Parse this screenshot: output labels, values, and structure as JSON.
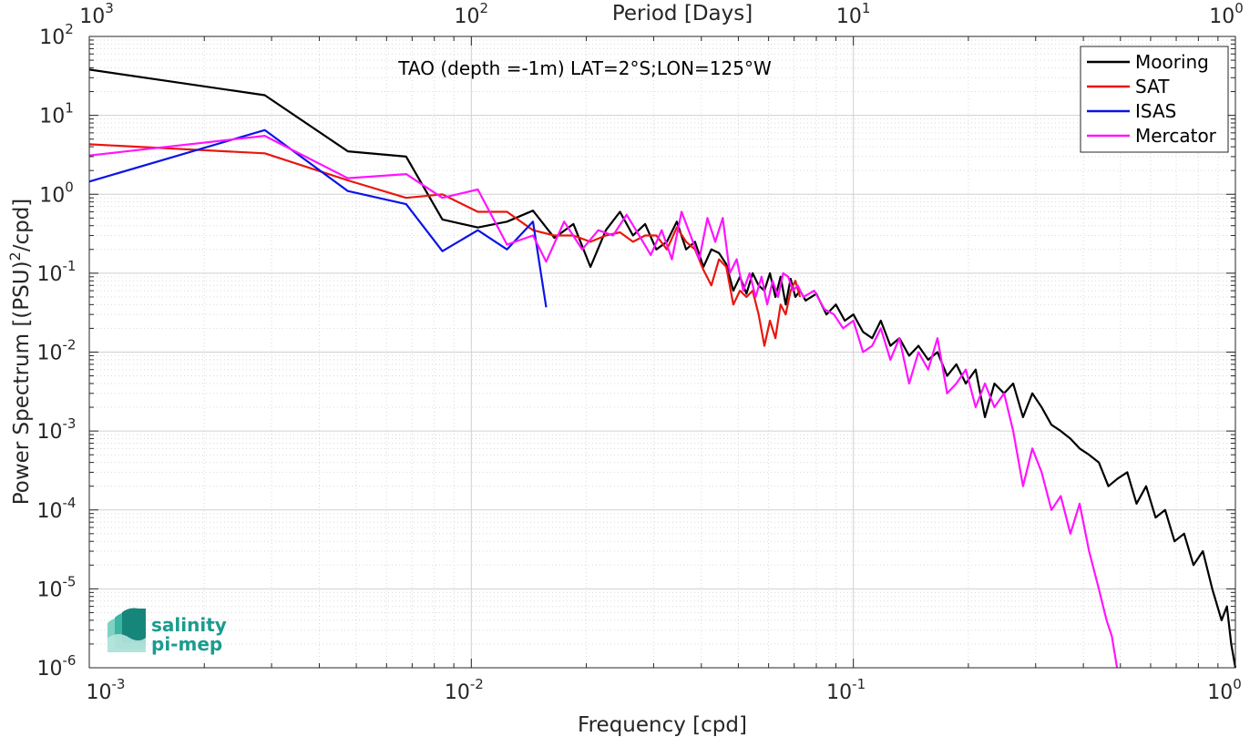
{
  "chart_data": {
    "type": "line",
    "title": "TAO (depth =-1m) LAT=2°S;LON=125°W",
    "xlabel": "Frequency [cpd]",
    "ylabel": "Power Spectrum [(PSU)²/cpd]",
    "ylabel_parts": {
      "before": "Power Spectrum [(PSU)",
      "sup": "2",
      "after": "/cpd]"
    },
    "top_xlabel": "Period [Days]",
    "x_scale": "log",
    "y_scale": "log",
    "xlim": [
      0.001,
      1
    ],
    "ylim": [
      1e-06,
      100
    ],
    "grid": true,
    "legend_position": "top-right",
    "x_ticks": [
      {
        "value": 0.001,
        "base": "10",
        "exp": "-3"
      },
      {
        "value": 0.01,
        "base": "10",
        "exp": "-2"
      },
      {
        "value": 0.1,
        "base": "10",
        "exp": "-1"
      },
      {
        "value": 1,
        "base": "10",
        "exp": "0"
      }
    ],
    "y_ticks": [
      {
        "value": 1e-06,
        "base": "10",
        "exp": "-6"
      },
      {
        "value": 1e-05,
        "base": "10",
        "exp": "-5"
      },
      {
        "value": 0.0001,
        "base": "10",
        "exp": "-4"
      },
      {
        "value": 0.001,
        "base": "10",
        "exp": "-3"
      },
      {
        "value": 0.01,
        "base": "10",
        "exp": "-2"
      },
      {
        "value": 0.1,
        "base": "10",
        "exp": "-1"
      },
      {
        "value": 1,
        "base": "10",
        "exp": "0"
      },
      {
        "value": 10,
        "base": "10",
        "exp": "1"
      },
      {
        "value": 100,
        "base": "10",
        "exp": "2"
      }
    ],
    "top_ticks": [
      {
        "freq": 0.001,
        "base": "10",
        "exp": "3"
      },
      {
        "freq": 0.01,
        "base": "10",
        "exp": "2"
      },
      {
        "freq": 0.1,
        "base": "10",
        "exp": "1"
      },
      {
        "freq": 1,
        "base": "10",
        "exp": "0"
      }
    ],
    "series": [
      {
        "name": "Mooring",
        "color": "#000000",
        "x": [
          0.001,
          0.00288,
          0.00475,
          0.00675,
          0.0084,
          0.0104,
          0.0124,
          0.0145,
          0.0165,
          0.0185,
          0.0205,
          0.0225,
          0.0245,
          0.0265,
          0.0285,
          0.0305,
          0.0325,
          0.0345,
          0.0365,
          0.0385,
          0.0405,
          0.0425,
          0.0445,
          0.0465,
          0.0485,
          0.0505,
          0.0525,
          0.0545,
          0.0565,
          0.0585,
          0.0605,
          0.0625,
          0.0645,
          0.0665,
          0.0685,
          0.0705,
          0.0725,
          0.075,
          0.08,
          0.085,
          0.09,
          0.095,
          0.1,
          0.106,
          0.112,
          0.118,
          0.125,
          0.132,
          0.14,
          0.148,
          0.157,
          0.166,
          0.176,
          0.186,
          0.197,
          0.209,
          0.221,
          0.234,
          0.248,
          0.262,
          0.278,
          0.294,
          0.311,
          0.33,
          0.349,
          0.37,
          0.391,
          0.414,
          0.439,
          0.465,
          0.492,
          0.521,
          0.551,
          0.584,
          0.618,
          0.655,
          0.693,
          0.734,
          0.777,
          0.822,
          0.87,
          0.92,
          0.95,
          0.975,
          1.0
        ],
        "y": [
          38,
          18,
          3.5,
          3.0,
          0.48,
          0.38,
          0.45,
          0.62,
          0.28,
          0.42,
          0.12,
          0.35,
          0.6,
          0.3,
          0.42,
          0.2,
          0.25,
          0.45,
          0.2,
          0.25,
          0.12,
          0.2,
          0.18,
          0.13,
          0.06,
          0.09,
          0.055,
          0.1,
          0.07,
          0.06,
          0.1,
          0.05,
          0.09,
          0.04,
          0.085,
          0.05,
          0.06,
          0.045,
          0.055,
          0.03,
          0.04,
          0.025,
          0.03,
          0.018,
          0.015,
          0.025,
          0.012,
          0.015,
          0.009,
          0.012,
          0.008,
          0.01,
          0.005,
          0.007,
          0.004,
          0.006,
          0.0015,
          0.004,
          0.003,
          0.004,
          0.0015,
          0.003,
          0.002,
          0.0012,
          0.001,
          0.0008,
          0.0006,
          0.0005,
          0.0004,
          0.0002,
          0.00025,
          0.0003,
          0.00012,
          0.0002,
          8e-05,
          0.0001,
          4e-05,
          5e-05,
          2e-05,
          3e-05,
          1e-05,
          4e-06,
          6e-06,
          2e-06,
          1e-06
        ]
      },
      {
        "name": "SAT",
        "color": "#e8170f",
        "x": [
          0.001,
          0.00288,
          0.00475,
          0.00675,
          0.0084,
          0.0104,
          0.0124,
          0.0145,
          0.0165,
          0.0185,
          0.0205,
          0.0225,
          0.0245,
          0.0265,
          0.0285,
          0.0305,
          0.0325,
          0.0345,
          0.0365,
          0.0385,
          0.0405,
          0.0425,
          0.0445,
          0.0465,
          0.0485,
          0.0505,
          0.0525,
          0.0545,
          0.0565,
          0.0585,
          0.0605,
          0.0625,
          0.0645,
          0.0665,
          0.0685,
          0.0705,
          0.0725
        ],
        "y": [
          4.3,
          3.3,
          1.5,
          0.9,
          1.0,
          0.6,
          0.6,
          0.35,
          0.3,
          0.3,
          0.25,
          0.3,
          0.33,
          0.25,
          0.3,
          0.3,
          0.2,
          0.38,
          0.25,
          0.2,
          0.11,
          0.07,
          0.15,
          0.12,
          0.04,
          0.06,
          0.05,
          0.06,
          0.03,
          0.012,
          0.025,
          0.015,
          0.04,
          0.03,
          0.06,
          0.08,
          0.05
        ]
      },
      {
        "name": "ISAS",
        "color": "#0a14e6",
        "x": [
          0.001,
          0.00288,
          0.00475,
          0.00675,
          0.0084,
          0.0104,
          0.0124,
          0.0145,
          0.0157
        ],
        "y": [
          1.45,
          6.5,
          1.1,
          0.75,
          0.19,
          0.35,
          0.2,
          0.45,
          0.037
        ]
      },
      {
        "name": "Mercator",
        "color": "#ff14ff",
        "x": [
          0.001,
          0.00288,
          0.00475,
          0.00675,
          0.0084,
          0.0104,
          0.0124,
          0.0145,
          0.0157,
          0.0175,
          0.0195,
          0.0215,
          0.0235,
          0.0255,
          0.0275,
          0.0295,
          0.0315,
          0.0335,
          0.0355,
          0.0375,
          0.0395,
          0.0415,
          0.0435,
          0.0455,
          0.0475,
          0.0495,
          0.0515,
          0.0535,
          0.0555,
          0.0575,
          0.0595,
          0.0615,
          0.0635,
          0.0655,
          0.0675,
          0.0695,
          0.0715,
          0.074,
          0.079,
          0.084,
          0.089,
          0.094,
          0.1,
          0.106,
          0.112,
          0.118,
          0.125,
          0.132,
          0.14,
          0.148,
          0.157,
          0.166,
          0.176,
          0.186,
          0.197,
          0.209,
          0.221,
          0.234,
          0.248,
          0.262,
          0.278,
          0.294,
          0.311,
          0.33,
          0.349,
          0.37,
          0.391,
          0.414,
          0.439,
          0.46,
          0.475,
          0.49
        ],
        "y": [
          3.1,
          5.5,
          1.6,
          1.8,
          0.9,
          1.15,
          0.23,
          0.3,
          0.14,
          0.45,
          0.2,
          0.35,
          0.3,
          0.55,
          0.3,
          0.17,
          0.35,
          0.15,
          0.6,
          0.3,
          0.15,
          0.5,
          0.25,
          0.5,
          0.1,
          0.15,
          0.06,
          0.1,
          0.05,
          0.09,
          0.04,
          0.08,
          0.05,
          0.1,
          0.09,
          0.06,
          0.07,
          0.05,
          0.06,
          0.035,
          0.03,
          0.02,
          0.025,
          0.01,
          0.012,
          0.02,
          0.008,
          0.015,
          0.004,
          0.01,
          0.006,
          0.015,
          0.003,
          0.004,
          0.006,
          0.002,
          0.004,
          0.002,
          0.003,
          0.001,
          0.0002,
          0.0006,
          0.0003,
          0.0001,
          0.00015,
          5e-05,
          0.00012,
          3e-05,
          1e-05,
          4e-06,
          2.5e-06,
          1e-06
        ]
      }
    ]
  },
  "logo": {
    "line1": "salinity",
    "line2": "pi-mep",
    "color": "#1a9c8f"
  }
}
